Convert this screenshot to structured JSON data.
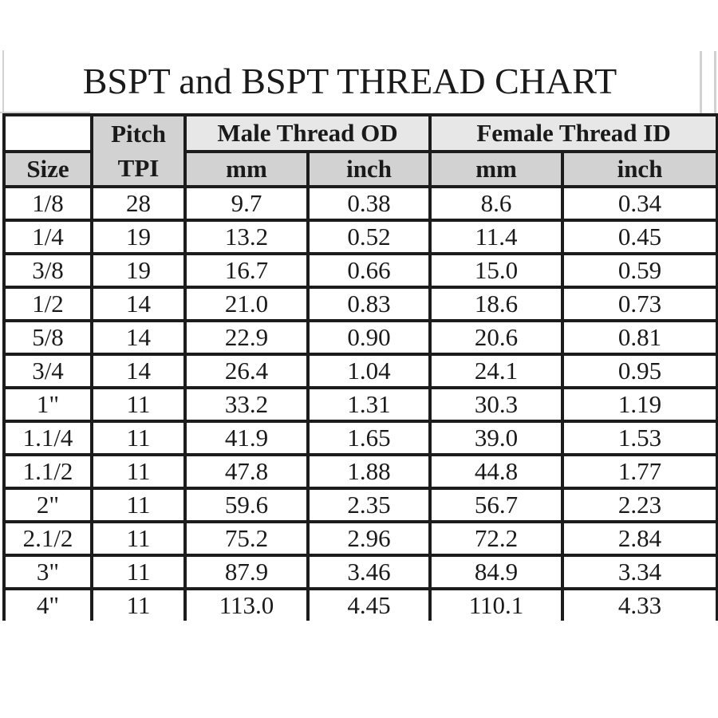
{
  "title": "BSPT and BSPT THREAD CHART",
  "table": {
    "pitch_header_line1": "Pitch",
    "pitch_header_line2": "TPI",
    "size_header": "Size",
    "group_headers": [
      {
        "label": "Male Thread OD"
      },
      {
        "label": "Female Thread ID"
      }
    ],
    "unit_headers": [
      "mm",
      "inch",
      "mm",
      "inch"
    ],
    "rows": [
      {
        "size": "1/8",
        "tpi": "28",
        "male_mm": "9.7",
        "male_inch": "0.38",
        "female_mm": "8.6",
        "female_inch": "0.34"
      },
      {
        "size": "1/4",
        "tpi": "19",
        "male_mm": "13.2",
        "male_inch": "0.52",
        "female_mm": "11.4",
        "female_inch": "0.45"
      },
      {
        "size": "3/8",
        "tpi": "19",
        "male_mm": "16.7",
        "male_inch": "0.66",
        "female_mm": "15.0",
        "female_inch": "0.59"
      },
      {
        "size": "1/2",
        "tpi": "14",
        "male_mm": "21.0",
        "male_inch": "0.83",
        "female_mm": "18.6",
        "female_inch": "0.73"
      },
      {
        "size": "5/8",
        "tpi": "14",
        "male_mm": "22.9",
        "male_inch": "0.90",
        "female_mm": "20.6",
        "female_inch": "0.81"
      },
      {
        "size": "3/4",
        "tpi": "14",
        "male_mm": "26.4",
        "male_inch": "1.04",
        "female_mm": "24.1",
        "female_inch": "0.95"
      },
      {
        "size": "1\"",
        "tpi": "11",
        "male_mm": "33.2",
        "male_inch": "1.31",
        "female_mm": "30.3",
        "female_inch": "1.19"
      },
      {
        "size": "1.1/4",
        "tpi": "11",
        "male_mm": "41.9",
        "male_inch": "1.65",
        "female_mm": "39.0",
        "female_inch": "1.53"
      },
      {
        "size": "1.1/2",
        "tpi": "11",
        "male_mm": "47.8",
        "male_inch": "1.88",
        "female_mm": "44.8",
        "female_inch": "1.77"
      },
      {
        "size": "2\"",
        "tpi": "11",
        "male_mm": "59.6",
        "male_inch": "2.35",
        "female_mm": "56.7",
        "female_inch": "2.23"
      },
      {
        "size": "2.1/2",
        "tpi": "11",
        "male_mm": "75.2",
        "male_inch": "2.96",
        "female_mm": "72.2",
        "female_inch": "2.84"
      },
      {
        "size": "3\"",
        "tpi": "11",
        "male_mm": "87.9",
        "male_inch": "3.46",
        "female_mm": "84.9",
        "female_inch": "3.34"
      },
      {
        "size": "4\"",
        "tpi": "11",
        "male_mm": "113.0",
        "male_inch": "4.45",
        "female_mm": "110.1",
        "female_inch": "4.33"
      }
    ]
  },
  "colors": {
    "border_black": "#1c1c1c",
    "header_grey": "#d2d2d2",
    "band_grey": "#e7e7e7",
    "faint_line_grey": "#d2d2d2",
    "background": "#ffffff"
  },
  "chart_data": {
    "type": "table",
    "title": "BSPT and BSPT THREAD CHART",
    "columns": [
      "Size",
      "Pitch TPI",
      "Male Thread OD mm",
      "Male Thread OD inch",
      "Female Thread ID mm",
      "Female Thread ID inch"
    ],
    "rows": [
      [
        "1/8",
        28,
        9.7,
        0.38,
        8.6,
        0.34
      ],
      [
        "1/4",
        19,
        13.2,
        0.52,
        11.4,
        0.45
      ],
      [
        "3/8",
        19,
        16.7,
        0.66,
        15.0,
        0.59
      ],
      [
        "1/2",
        14,
        21.0,
        0.83,
        18.6,
        0.73
      ],
      [
        "5/8",
        14,
        22.9,
        0.9,
        20.6,
        0.81
      ],
      [
        "3/4",
        14,
        26.4,
        1.04,
        24.1,
        0.95
      ],
      [
        "1\"",
        11,
        33.2,
        1.31,
        30.3,
        1.19
      ],
      [
        "1.1/4",
        11,
        41.9,
        1.65,
        39.0,
        1.53
      ],
      [
        "1.1/2",
        11,
        47.8,
        1.88,
        44.8,
        1.77
      ],
      [
        "2\"",
        11,
        59.6,
        2.35,
        56.7,
        2.23
      ],
      [
        "2.1/2",
        11,
        75.2,
        2.96,
        72.2,
        2.84
      ],
      [
        "3\"",
        11,
        87.9,
        3.46,
        84.9,
        3.34
      ],
      [
        "4\"",
        11,
        113.0,
        4.45,
        110.1,
        4.33
      ]
    ]
  }
}
